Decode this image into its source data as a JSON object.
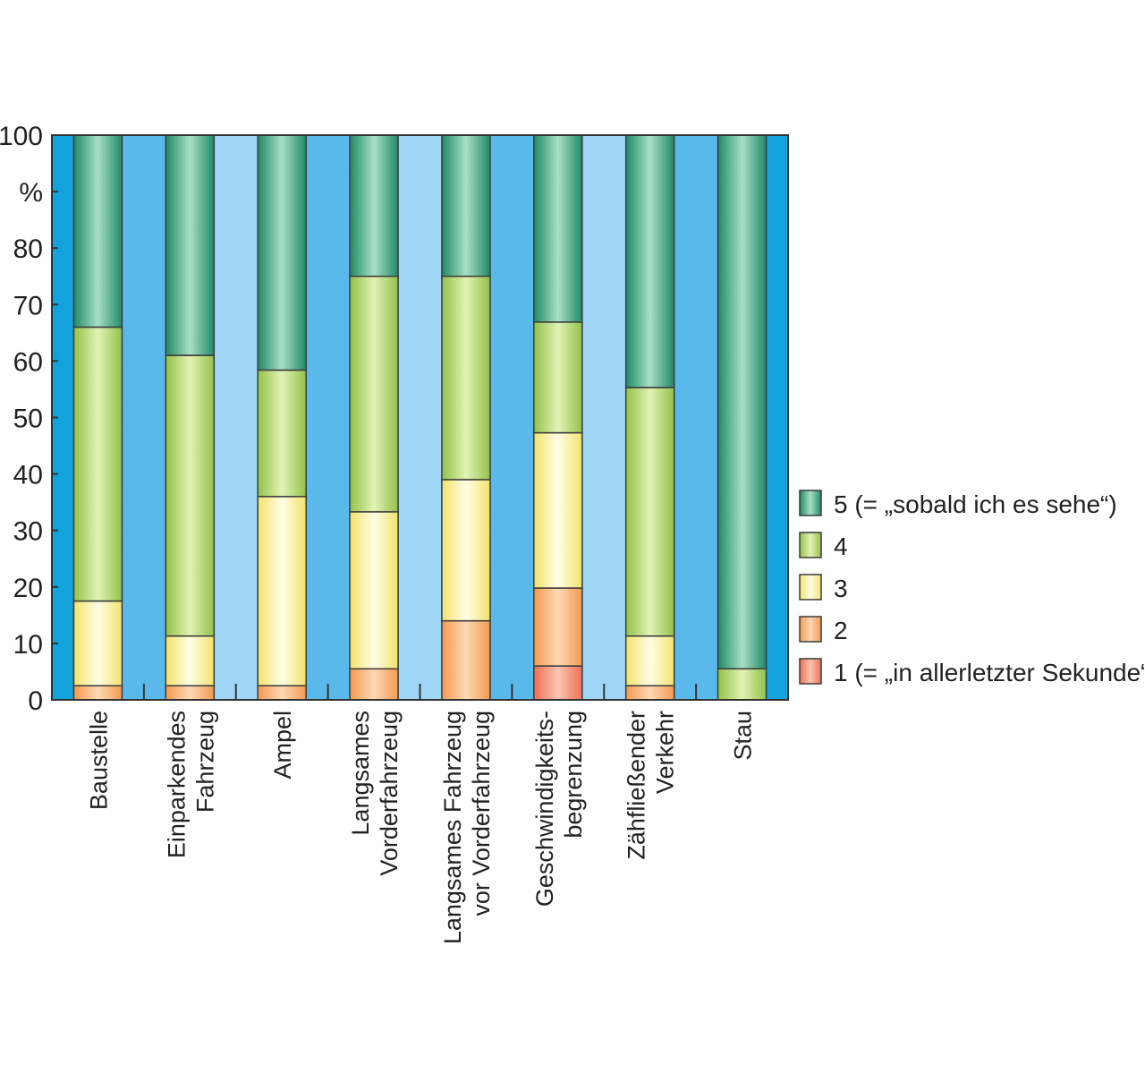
{
  "chart_data": {
    "type": "bar",
    "stacked": true,
    "orientation": "vertical",
    "y_unit_label": "%",
    "ylim": [
      0,
      100
    ],
    "yticks": [
      0,
      10,
      20,
      30,
      40,
      50,
      60,
      70,
      80,
      90,
      100
    ],
    "yticks_labels": [
      "0",
      "10",
      "20",
      "30",
      "40",
      "50",
      "60",
      "70",
      "80",
      "",
      "100"
    ],
    "categories": [
      [
        "Baustelle"
      ],
      [
        "Einparkendes",
        "Fahrzeug"
      ],
      [
        "Ampel"
      ],
      [
        "Langsames",
        "Vorderfahrzeug"
      ],
      [
        "Langsames Fahrzeug",
        "vor Vorderfahrzeug"
      ],
      [
        "Geschwindigkeits-",
        "begrenzung"
      ],
      [
        "Zähfließender",
        "Verkehr"
      ],
      [
        "Stau"
      ]
    ],
    "series": [
      {
        "name": "1 (= „in allerletzter Sekunde“)",
        "color": "#f4876a",
        "values": [
          0,
          0,
          0,
          0,
          0,
          6,
          0,
          0
        ]
      },
      {
        "name": "2",
        "color": "#f6a765",
        "values": [
          2.5,
          2.5,
          2.5,
          5.5,
          14,
          13.8,
          2.5,
          0
        ]
      },
      {
        "name": "3",
        "color": "#f6ef8e",
        "values": [
          15,
          8.8,
          33.5,
          27.8,
          25,
          27.5,
          8.8,
          0
        ]
      },
      {
        "name": "4",
        "color": "#b6d96a",
        "values": [
          48.5,
          49.7,
          22.4,
          41.7,
          36,
          19.6,
          44,
          5.5
        ]
      },
      {
        "name": "5 (= „sobald ich es sehe“)",
        "color": "#2f9f7c",
        "values": [
          34,
          39,
          41.6,
          25,
          25,
          33.1,
          44.7,
          94.5
        ]
      }
    ],
    "legend": {
      "position": "right",
      "order": [
        4,
        3,
        2,
        1,
        0
      ]
    },
    "background_bands": [
      "#14a2dc",
      "#5ab9eb",
      "#9fd6f5"
    ],
    "grid": false
  }
}
